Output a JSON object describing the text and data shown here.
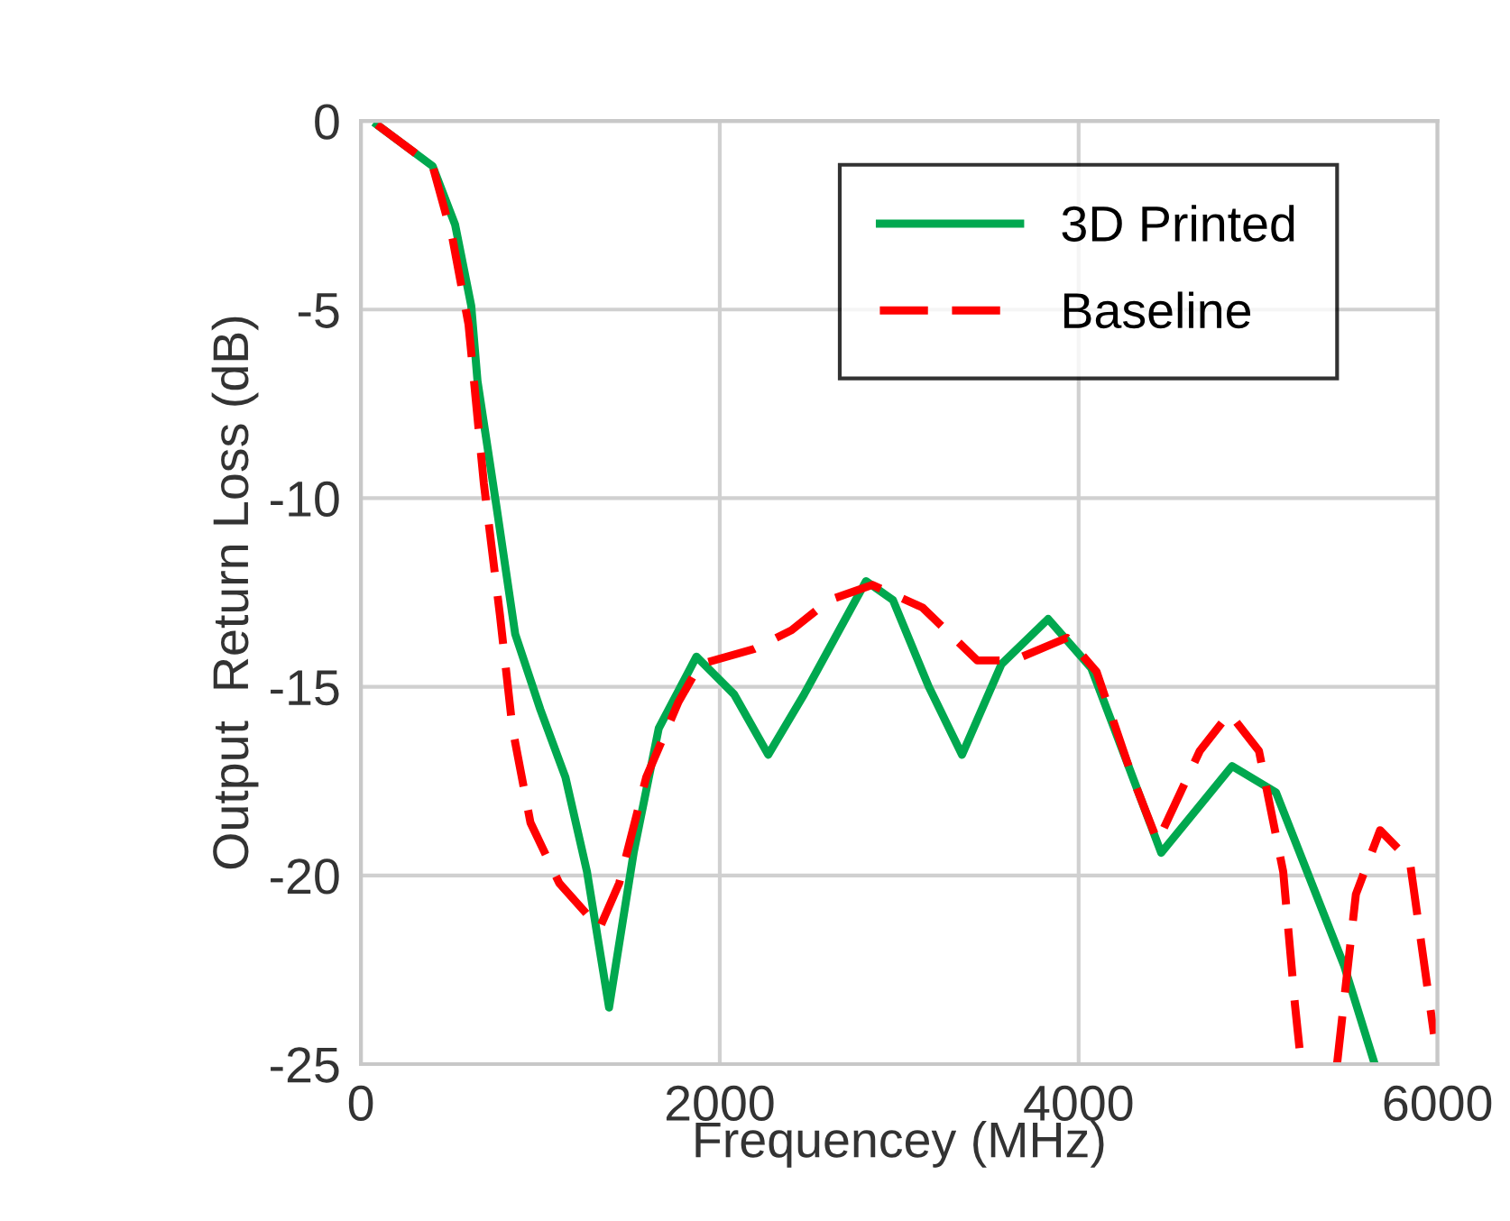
{
  "chart_data": {
    "type": "line",
    "xlabel": "Frequencey (MHz)",
    "ylabel": "Output  Return Loss (dB)",
    "xlim": [
      0,
      6000
    ],
    "ylim": [
      -25,
      0
    ],
    "xticks": [
      0,
      2000,
      4000,
      6000
    ],
    "yticks": [
      0,
      -5,
      -10,
      -15,
      -20,
      -25
    ],
    "grid": true,
    "legend": "top right",
    "marker": "none",
    "series": [
      {
        "name": "3D Printed",
        "color": "#00a84f",
        "line_style": "solid",
        "x": [
          90,
          400,
          525,
          615,
          650,
          755,
          860,
          1000,
          1140,
          1260,
          1383,
          1520,
          1660,
          1870,
          2080,
          2270,
          2470,
          2815,
          2965,
          3165,
          3350,
          3570,
          3830,
          4070,
          4270,
          4460,
          4855,
          5100,
          5480,
          5650
        ],
        "values": [
          -0.1,
          -1.2,
          -2.75,
          -4.9,
          -6.9,
          -10.2,
          -13.6,
          -15.6,
          -17.4,
          -19.9,
          -23.5,
          -19.4,
          -16.1,
          -14.2,
          -15.2,
          -16.8,
          -15.2,
          -12.2,
          -12.7,
          -15,
          -16.8,
          -14.4,
          -13.2,
          -14.5,
          -17,
          -19.4,
          -17.1,
          -17.8,
          -22.4,
          -25
        ]
      },
      {
        "name": "Baseline",
        "color": "#ff0000",
        "line_style": "dashed",
        "x": [
          90,
          400,
          510,
          600,
          685,
          775,
          845,
          945,
          1105,
          1330,
          1440,
          1590,
          1770,
          1890,
          2190,
          2400,
          2610,
          2850,
          3130,
          3435,
          3635,
          3935,
          4100,
          4300,
          4440,
          4675,
          4840,
          5005,
          5140,
          5205,
          5240,
          5340,
          5440,
          5545,
          5680,
          5845,
          5980
        ],
        "values": [
          -0.1,
          -1.2,
          -3.1,
          -5.4,
          -9.6,
          -13.1,
          -16.1,
          -18.6,
          -20.2,
          -21.4,
          -20.2,
          -17.4,
          -15.4,
          -14.4,
          -14,
          -13.5,
          -12.7,
          -12.3,
          -12.9,
          -14.3,
          -14.3,
          -13.7,
          -14.6,
          -17.4,
          -19.1,
          -16.7,
          -15.7,
          -16.7,
          -19.9,
          -23.4,
          -25,
          null,
          -25,
          -20.5,
          -18.8,
          -19.6,
          -24.2
        ]
      }
    ]
  }
}
